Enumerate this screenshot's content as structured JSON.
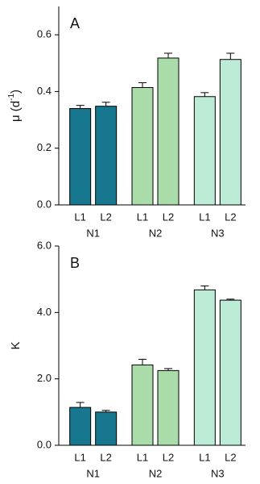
{
  "chart_data": [
    {
      "type": "bar",
      "panel_label": "A",
      "ylabel": "μ (d",
      "ylabel_sup": "-1",
      "ylabel_end": ")",
      "categories": [
        "L1",
        "L2"
      ],
      "series": [
        {
          "name": "N1",
          "color": "#17778f",
          "values": [
            0.34,
            0.348
          ],
          "errors": [
            0.011,
            0.014
          ]
        },
        {
          "name": "N2",
          "color": "#a9dca9",
          "values": [
            0.414,
            0.518
          ],
          "errors": [
            0.017,
            0.017
          ]
        },
        {
          "name": "N3",
          "color": "#bcecd6",
          "values": [
            0.382,
            0.513
          ],
          "errors": [
            0.014,
            0.022
          ]
        }
      ],
      "ylim": [
        0,
        0.7
      ],
      "yticks": [
        {
          "value": 0,
          "label": "0.0"
        },
        0.2,
        0.4,
        0.6
      ]
    },
    {
      "type": "bar",
      "panel_label": "B",
      "ylabel": "K",
      "categories": [
        "L1",
        "L2"
      ],
      "series": [
        {
          "name": "N1",
          "color": "#17778f",
          "values": [
            1.14,
            1.0
          ],
          "errors": [
            0.15,
            0.05
          ]
        },
        {
          "name": "N2",
          "color": "#a9dca9",
          "values": [
            2.42,
            2.25
          ],
          "errors": [
            0.17,
            0.06
          ]
        },
        {
          "name": "N3",
          "color": "#bcecd6",
          "values": [
            4.68,
            4.37
          ],
          "errors": [
            0.12,
            0.03
          ]
        }
      ],
      "ylim": [
        0,
        6
      ],
      "yticks": [
        {
          "value": 0,
          "label": "0.0"
        },
        {
          "value": 2,
          "label": "2.0"
        },
        {
          "value": 4,
          "label": "4.0"
        },
        {
          "value": 6,
          "label": "6.0"
        }
      ]
    }
  ]
}
